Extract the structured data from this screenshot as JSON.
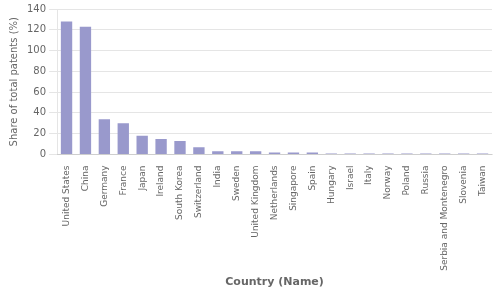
{
  "chart_data": {
    "type": "bar",
    "categories": [
      "United States",
      "China",
      "Germany",
      "France",
      "Japan",
      "Ireland",
      "South Korea",
      "Switzerland",
      "India",
      "Sweden",
      "United Kingdom",
      "Netherlands",
      "Singapore",
      "Spain",
      "Hungary",
      "Israel",
      "Italy",
      "Norway",
      "Poland",
      "Russia",
      "Serbia and Montenegro",
      "Slovenia",
      "Taiwan"
    ],
    "values": [
      128,
      123,
      34,
      30,
      18,
      15,
      13,
      7,
      3,
      3,
      3,
      2,
      2,
      2,
      1,
      1,
      1,
      1,
      1,
      1,
      1,
      1,
      1
    ],
    "color": "#9999cc",
    "xlabel": "Country (Name)",
    "ylabel": "Share of total patents (%)",
    "ylim": [
      0,
      140
    ],
    "yticks": [
      0,
      20,
      40,
      60,
      80,
      100,
      120,
      140
    ],
    "grid": true
  }
}
